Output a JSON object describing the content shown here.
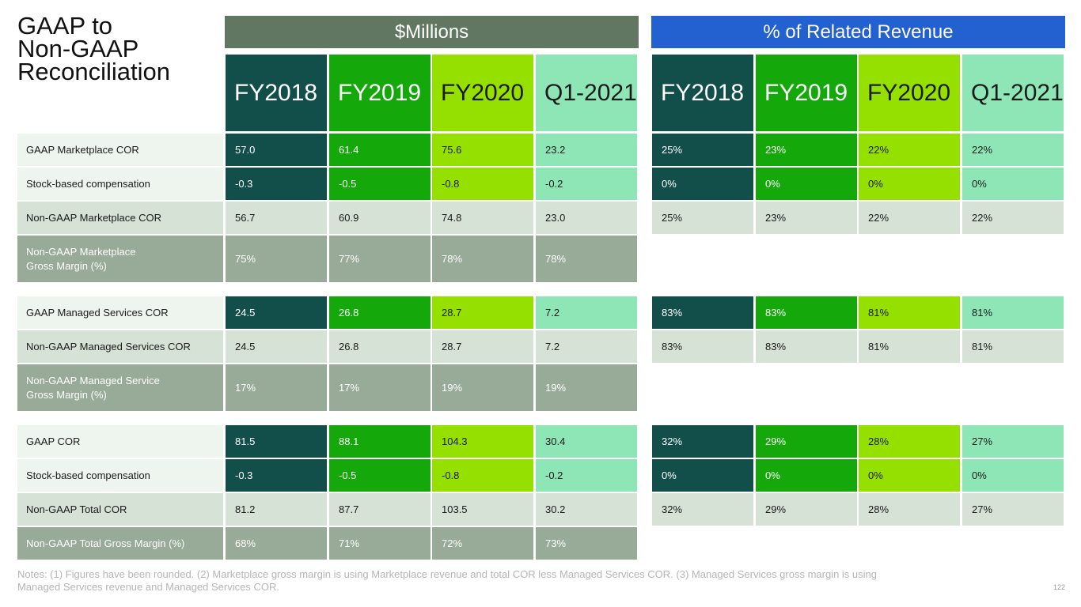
{
  "title": "GAAP to\nNon-GAAP\nReconciliation",
  "groups": {
    "millions": "$Millions",
    "percent": "% of Related Revenue"
  },
  "columns": [
    "FY2018",
    "FY2019",
    "FY2020",
    "Q1-2021"
  ],
  "colors": {
    "fy2018": "#134f4a",
    "fy2019": "#14a80b",
    "fy2020": "#96e000",
    "q1_2021": "#8ee6b6",
    "millions_header": "#627762",
    "percent_header": "#2360d0",
    "row_light": "#eef5ee",
    "row_mid": "#d6e2d6",
    "row_margin": "#98aa98"
  },
  "rows": [
    {
      "label": "GAAP Marketplace COR",
      "m": [
        "57.0",
        "61.4",
        "75.6",
        "23.2"
      ],
      "p": [
        "25%",
        "23%",
        "22%",
        "22%"
      ]
    },
    {
      "label": "Stock-based compensation",
      "m": [
        "-0.3",
        "-0.5",
        "-0.8",
        "-0.2"
      ],
      "p": [
        "0%",
        "0%",
        "0%",
        "0%"
      ]
    },
    {
      "label": "Non-GAAP Marketplace COR",
      "m": [
        "56.7",
        "60.9",
        "74.8",
        "23.0"
      ],
      "p": [
        "25%",
        "23%",
        "22%",
        "22%"
      ]
    },
    {
      "label": "Non-GAAP Marketplace\nGross Margin (%)",
      "m": [
        "75%",
        "77%",
        "78%",
        "78%"
      ]
    },
    {
      "label": "GAAP Managed Services COR",
      "m": [
        "24.5",
        "26.8",
        "28.7",
        "7.2"
      ],
      "p": [
        "83%",
        "83%",
        "81%",
        "81%"
      ]
    },
    {
      "label": "Non-GAAP Managed Services COR",
      "m": [
        "24.5",
        "26.8",
        "28.7",
        "7.2"
      ],
      "p": [
        "83%",
        "83%",
        "81%",
        "81%"
      ]
    },
    {
      "label": "Non-GAAP Managed Service\nGross Margin (%)",
      "m": [
        "17%",
        "17%",
        "19%",
        "19%"
      ]
    },
    {
      "label": "GAAP COR",
      "m": [
        "81.5",
        "88.1",
        "104.3",
        "30.4"
      ],
      "p": [
        "32%",
        "29%",
        "28%",
        "27%"
      ]
    },
    {
      "label": "Stock-based compensation",
      "m": [
        "-0.3",
        "-0.5",
        "-0.8",
        "-0.2"
      ],
      "p": [
        "0%",
        "0%",
        "0%",
        "0%"
      ]
    },
    {
      "label": "Non-GAAP Total COR",
      "m": [
        "81.2",
        "87.7",
        "103.5",
        "30.2"
      ],
      "p": [
        "32%",
        "29%",
        "28%",
        "27%"
      ]
    },
    {
      "label": "Non-GAAP Total Gross Margin (%)",
      "m": [
        "68%",
        "71%",
        "72%",
        "73%"
      ]
    }
  ],
  "notes": "Notes: (1) Figures have been rounded. (2) Marketplace gross margin is using Marketplace revenue and total COR less Managed Services COR. (3) Managed Services gross margin is using Managed Services revenue and Managed Services COR.",
  "page_number": "122"
}
